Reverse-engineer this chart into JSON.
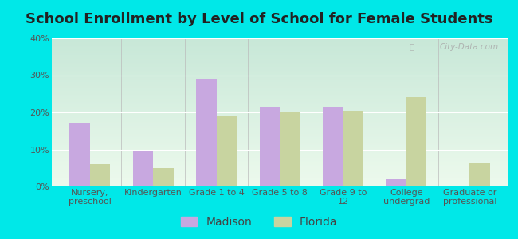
{
  "title": "School Enrollment by Level of School for Female Students",
  "categories": [
    "Nursery,\npreschool",
    "Kindergarten",
    "Grade 1 to 4",
    "Grade 5 to 8",
    "Grade 9 to\n12",
    "College\nundergrad",
    "Graduate or\nprofessional"
  ],
  "madison_values": [
    17,
    9.5,
    29,
    21.5,
    21.5,
    2,
    0
  ],
  "florida_values": [
    6,
    5,
    19,
    20,
    20.5,
    24,
    6.5
  ],
  "madison_color": "#c8a8e0",
  "florida_color": "#c8d4a0",
  "background_color": "#00e8e8",
  "plot_bg_top": "#c8e8d8",
  "plot_bg_bottom": "#edfaed",
  "ylim": [
    0,
    40
  ],
  "yticks": [
    0,
    10,
    20,
    30,
    40
  ],
  "legend_labels": [
    "Madison",
    "Florida"
  ],
  "bar_width": 0.32,
  "title_fontsize": 13,
  "tick_fontsize": 8,
  "legend_fontsize": 10
}
